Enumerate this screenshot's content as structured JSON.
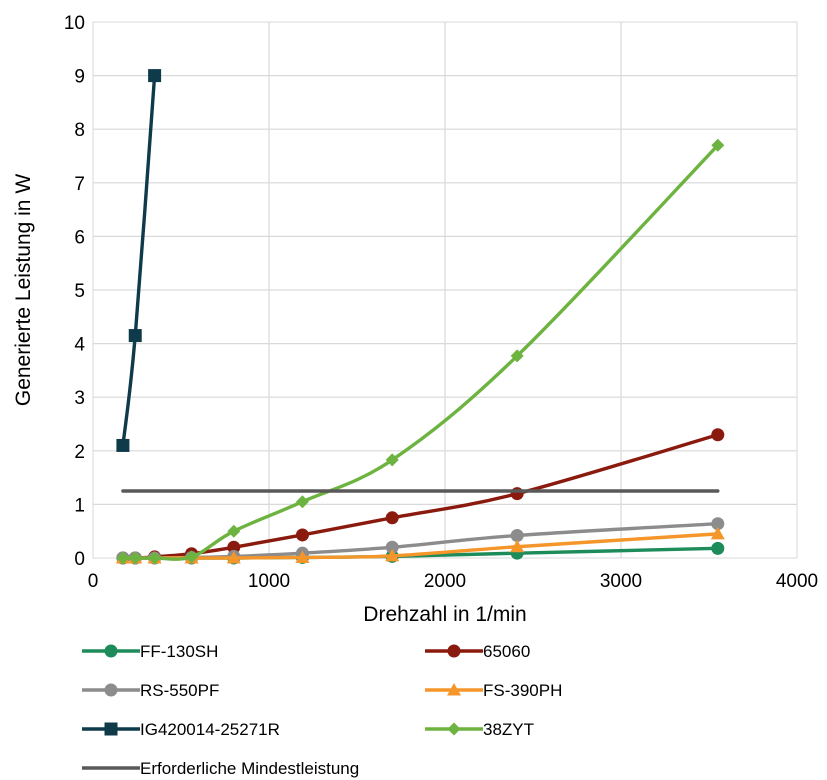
{
  "chart_data": {
    "type": "line",
    "xlabel": "Drehzahl in 1/min",
    "ylabel": "Generierte Leistung in W",
    "xlim": [
      0,
      4000
    ],
    "ylim": [
      0,
      10
    ],
    "xticks": [
      "0",
      "1000",
      "2000",
      "3000",
      "4000"
    ],
    "yticks": [
      "0",
      "1",
      "2",
      "3",
      "4",
      "5",
      "6",
      "7",
      "8",
      "9",
      "10"
    ],
    "grid": true,
    "legend_position": "bottom",
    "series": [
      {
        "name": "FF-130SH",
        "color": "#1e8c5a",
        "marker": "circle",
        "smooth": true,
        "points": [
          [
            170,
            0.0
          ],
          [
            240,
            0.0
          ],
          [
            350,
            0.0
          ],
          [
            560,
            0.0
          ],
          [
            800,
            0.0
          ],
          [
            1190,
            0.01
          ],
          [
            1700,
            0.03
          ],
          [
            2410,
            0.09
          ],
          [
            3550,
            0.18
          ]
        ]
      },
      {
        "name": "65060",
        "color": "#8b1a0e",
        "marker": "circle",
        "smooth": true,
        "points": [
          [
            170,
            0.0
          ],
          [
            240,
            0.0
          ],
          [
            350,
            0.02
          ],
          [
            560,
            0.08
          ],
          [
            800,
            0.2
          ],
          [
            1190,
            0.43
          ],
          [
            1700,
            0.75
          ],
          [
            2410,
            1.2
          ],
          [
            3550,
            2.3
          ]
        ]
      },
      {
        "name": "RS-550PF",
        "color": "#8c8c8c",
        "marker": "circle",
        "smooth": true,
        "points": [
          [
            170,
            0.0
          ],
          [
            240,
            0.0
          ],
          [
            350,
            0.0
          ],
          [
            560,
            0.01
          ],
          [
            800,
            0.03
          ],
          [
            1190,
            0.09
          ],
          [
            1700,
            0.2
          ],
          [
            2410,
            0.42
          ],
          [
            3550,
            0.64
          ]
        ]
      },
      {
        "name": "FS-390PH",
        "color": "#f5962a",
        "marker": "triangle",
        "smooth": true,
        "points": [
          [
            170,
            0.0
          ],
          [
            240,
            0.0
          ],
          [
            350,
            0.0
          ],
          [
            560,
            0.0
          ],
          [
            800,
            0.0
          ],
          [
            1190,
            0.01
          ],
          [
            1700,
            0.04
          ],
          [
            2410,
            0.21
          ],
          [
            3550,
            0.45
          ]
        ]
      },
      {
        "name": "IG420014-25271R",
        "color": "#0f3a4a",
        "marker": "square",
        "smooth": true,
        "points": [
          [
            170,
            2.1
          ],
          [
            240,
            4.15
          ],
          [
            350,
            9.0
          ]
        ]
      },
      {
        "name": "38ZYT",
        "color": "#6db33f",
        "marker": "diamond",
        "smooth": true,
        "points": [
          [
            170,
            0.0
          ],
          [
            240,
            0.0
          ],
          [
            350,
            0.0
          ],
          [
            560,
            0.02
          ],
          [
            800,
            0.5
          ],
          [
            1190,
            1.05
          ],
          [
            1700,
            1.83
          ],
          [
            2410,
            3.77
          ],
          [
            3550,
            7.7
          ]
        ]
      },
      {
        "name": "Erforderliche Mindestleistung",
        "color": "#595959",
        "marker": "none",
        "smooth": false,
        "points": [
          [
            170,
            1.25
          ],
          [
            3550,
            1.25
          ]
        ]
      }
    ]
  }
}
